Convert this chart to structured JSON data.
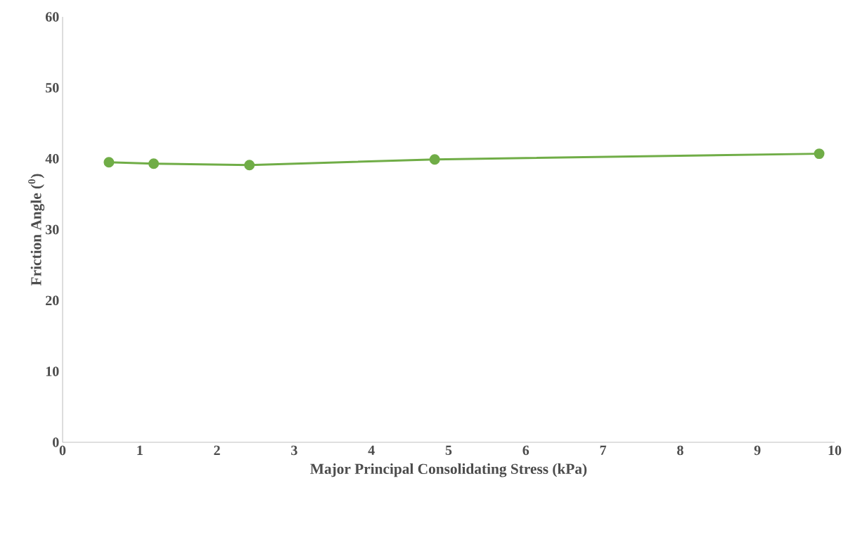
{
  "chart_data": {
    "type": "line",
    "xlabel": "Major Principal Consolidating Stress (kPa)",
    "ylabel": "Friction Angle ($^{0}$)",
    "series": [
      {
        "color": "#70ad47",
        "x": [
          0.6,
          1.18,
          2.42,
          4.82,
          9.8
        ],
        "values": [
          39.5,
          39.3,
          39.1,
          39.9,
          40.7
        ]
      }
    ],
    "xlim": [
      0,
      10
    ],
    "ylim": [
      0,
      60
    ],
    "xticks": [
      0,
      1,
      2,
      3,
      4,
      5,
      6,
      7,
      8,
      9,
      10
    ],
    "yticks": [
      0,
      10,
      20,
      30,
      40,
      50,
      60
    ],
    "grid": false,
    "marker": "circle",
    "line_style": "solid"
  }
}
